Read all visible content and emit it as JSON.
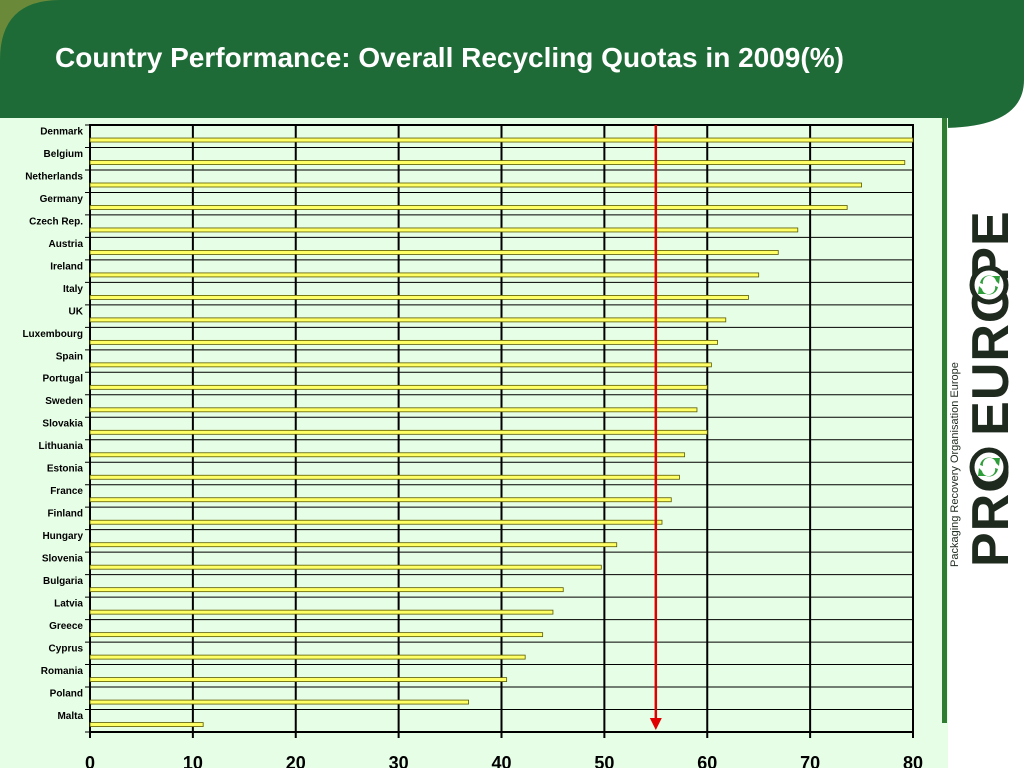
{
  "header": {
    "title": "Country Performance: Overall Recycling Quotas in 2009(%)"
  },
  "logo": {
    "wordmark": "PRO EUROPE",
    "tagline": "Packaging Recovery Organisation Europe"
  },
  "colors": {
    "header_green": "#1f6b37",
    "plot_background": "#e6fde6",
    "bar_fill": "#ffff66",
    "bar_stroke": "#5a5a00",
    "reference_line": "#e00000",
    "logo_text": "#1f2a1f",
    "logo_green": "#2e9e3a"
  },
  "chart_data": {
    "type": "bar",
    "orientation": "horizontal",
    "title": "Country Performance: Overall Recycling Quotas in 2009(%)",
    "categories": [
      "Denmark",
      "Belgium",
      "Netherlands",
      "Germany",
      "Czech Rep.",
      "Austria",
      "Ireland",
      "Italy",
      "UK",
      "Luxembourg",
      "Spain",
      "Portugal",
      "Sweden",
      "Slovakia",
      "Lithuania",
      "Estonia",
      "France",
      "Finland",
      "Hungary",
      "Slovenia",
      "Bulgaria",
      "Latvia",
      "Greece",
      "Cyprus",
      "Romania",
      "Poland",
      "Malta"
    ],
    "values": [
      80,
      79.2,
      75,
      73.6,
      68.8,
      66.9,
      65,
      64,
      61.8,
      61,
      60.4,
      60,
      59,
      60,
      57.8,
      57.3,
      56.5,
      55.6,
      51.2,
      49.7,
      46,
      45,
      44,
      42.3,
      40.5,
      36.8,
      11
    ],
    "xlim": [
      0,
      80
    ],
    "xticks": [
      0,
      10,
      20,
      30,
      40,
      50,
      60,
      70,
      80
    ],
    "grid": true,
    "reference_line": {
      "x": 55
    },
    "legend": "none"
  }
}
